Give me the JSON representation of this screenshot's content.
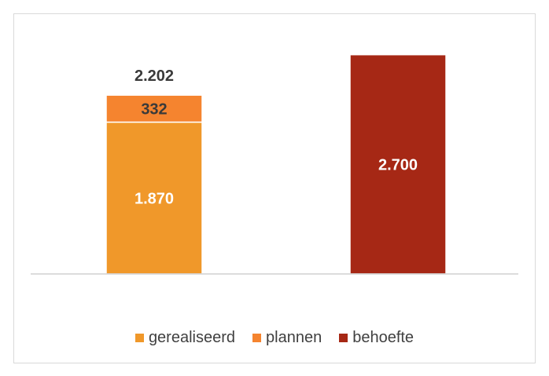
{
  "chart_data": {
    "type": "bar",
    "stacked": true,
    "categories": [
      "",
      ""
    ],
    "series": [
      {
        "name": "gerealiseerd",
        "color": "#F0982A",
        "values": [
          1870,
          null
        ],
        "labels": [
          "1.870",
          ""
        ]
      },
      {
        "name": "plannen",
        "color": "#F5842F",
        "values": [
          332,
          null
        ],
        "labels": [
          "332",
          ""
        ]
      },
      {
        "name": "behoefte",
        "color": "#A62815",
        "values": [
          null,
          2700
        ],
        "labels": [
          "",
          "2.700"
        ]
      }
    ],
    "totals": [
      {
        "category_index": 0,
        "value": 2202,
        "label": "2.202"
      }
    ],
    "ylim": [
      0,
      2900
    ],
    "grid": false,
    "legend_position": "bottom"
  }
}
